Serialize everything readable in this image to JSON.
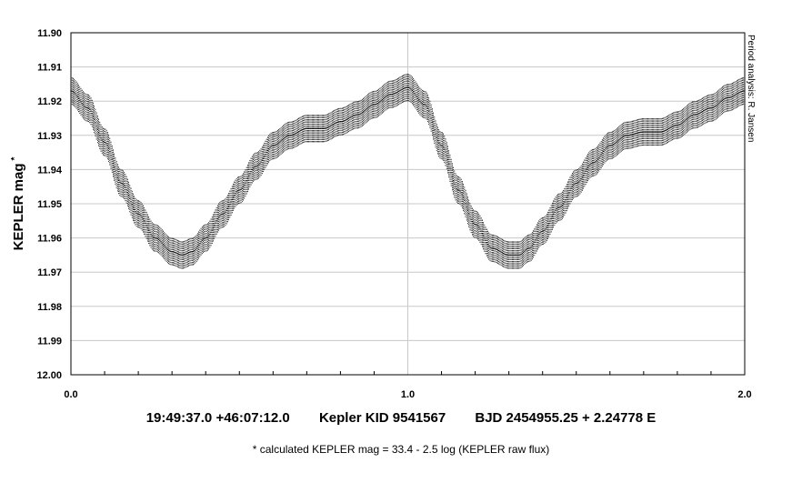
{
  "chart_data": {
    "type": "scatter",
    "title": "",
    "xlabel": "",
    "ylabel": "KEPLER mag",
    "ylabel_mark": "*",
    "xlim": [
      0.0,
      2.0
    ],
    "ylim": [
      11.9,
      12.0
    ],
    "y_inverted": true,
    "grid": true,
    "x_ticks": [
      "0.0",
      "1.0",
      "2.0"
    ],
    "y_ticks": [
      "11.90",
      "11.91",
      "11.92",
      "11.93",
      "11.94",
      "11.95",
      "11.96",
      "11.97",
      "11.98",
      "11.99",
      "12.00"
    ],
    "annotation": "Period analysis: R. Jansen",
    "series": [
      {
        "marker": "vertical error bars",
        "x": [
          0.0,
          0.05,
          0.1,
          0.15,
          0.2,
          0.25,
          0.3,
          0.33,
          0.36,
          0.4,
          0.45,
          0.5,
          0.55,
          0.6,
          0.65,
          0.7,
          0.75,
          0.8,
          0.85,
          0.9,
          0.95,
          1.0,
          1.05,
          1.1,
          1.15,
          1.2,
          1.25,
          1.3,
          1.33,
          1.36,
          1.4,
          1.45,
          1.5,
          1.55,
          1.6,
          1.65,
          1.7,
          1.75,
          1.8,
          1.85,
          1.9,
          1.95,
          2.0
        ],
        "y": [
          11.917,
          11.922,
          11.932,
          11.944,
          11.953,
          11.96,
          11.964,
          11.965,
          11.964,
          11.96,
          11.953,
          11.946,
          11.939,
          11.933,
          11.93,
          11.928,
          11.928,
          11.926,
          11.924,
          11.921,
          11.918,
          11.916,
          11.921,
          11.933,
          11.946,
          11.956,
          11.963,
          11.965,
          11.965,
          11.963,
          11.958,
          11.951,
          11.944,
          11.938,
          11.933,
          11.93,
          11.929,
          11.929,
          11.927,
          11.924,
          11.922,
          11.919,
          11.917
        ],
        "y_error": 0.004
      }
    ]
  },
  "info": {
    "coords": "19:49:37.0 +46:07:12.0",
    "target": "Kepler KID 9541567",
    "ephemeris": "BJD 2454955.25 + 2.24778 E"
  },
  "footnote": "* calculated KEPLER mag = 33.4 - 2.5 log (KEPLER raw flux)"
}
